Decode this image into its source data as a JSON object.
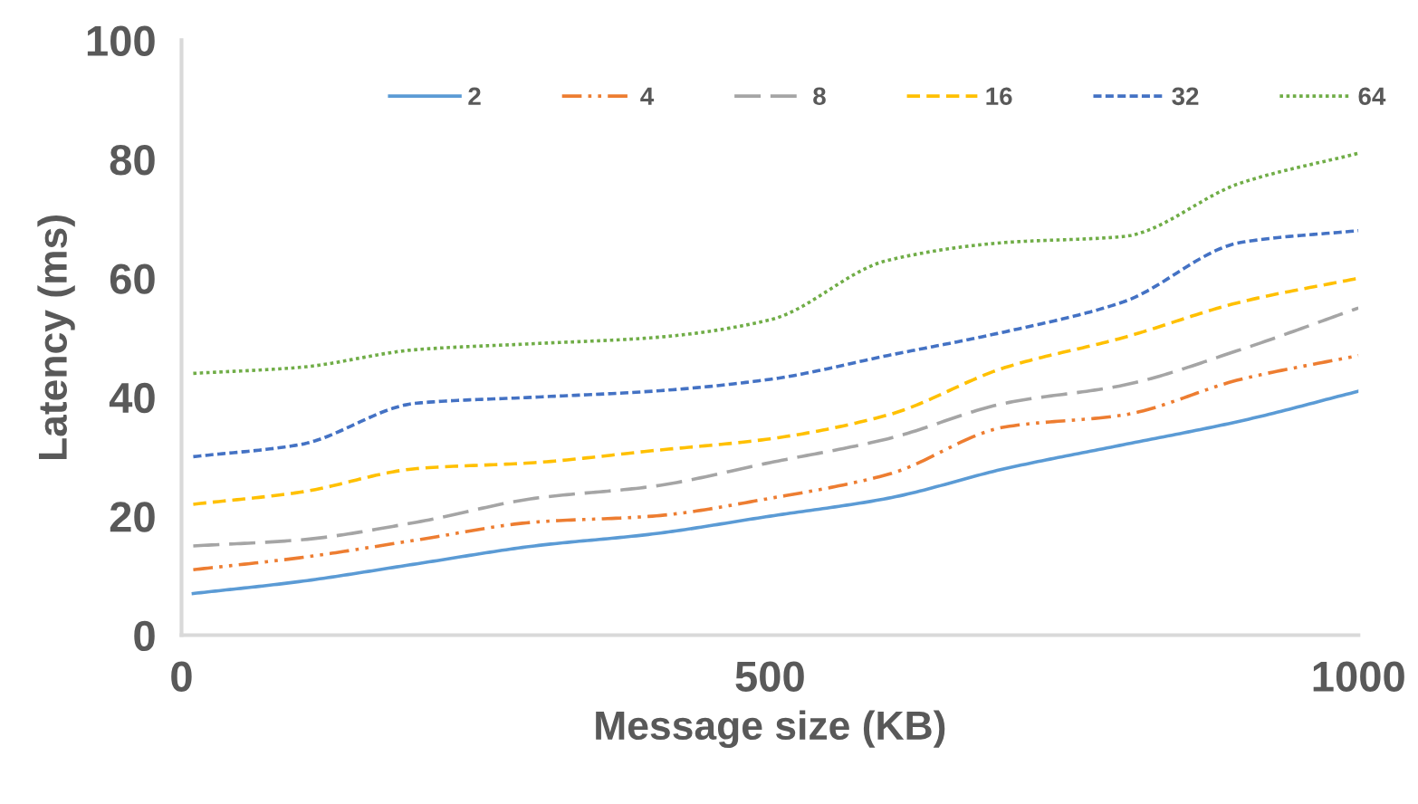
{
  "chart_data": {
    "type": "line",
    "xlabel": "Message size (KB)",
    "ylabel": "Latency (ms)",
    "x": [
      10,
      100,
      200,
      300,
      400,
      500,
      600,
      700,
      800,
      900,
      1000
    ],
    "xlim": [
      0,
      1000
    ],
    "xticks": [
      0,
      500,
      1000
    ],
    "ylim": [
      0,
      100
    ],
    "yticks": [
      0,
      20,
      40,
      60,
      80,
      100
    ],
    "grid": false,
    "legend": "top",
    "marker": "none",
    "series": [
      {
        "name": "2",
        "color": "#5b9bd5",
        "line_style": "solid",
        "values": [
          7,
          9,
          12,
          15,
          17,
          20,
          23,
          28,
          32,
          36,
          41
        ]
      },
      {
        "name": "4",
        "color": "#ed7d31",
        "line_style": "dashdotdot",
        "values": [
          11,
          13,
          16,
          19,
          20,
          23,
          27,
          35,
          37,
          43,
          47
        ]
      },
      {
        "name": "8",
        "color": "#a5a5a5",
        "line_style": "longdash",
        "values": [
          15,
          16,
          19,
          23,
          25,
          29,
          33,
          39,
          42,
          48,
          55
        ]
      },
      {
        "name": "16",
        "color": "#ffc000",
        "line_style": "dashed",
        "values": [
          22,
          24,
          28,
          29,
          31,
          33,
          37,
          45,
          50,
          56,
          60
        ]
      },
      {
        "name": "32",
        "color": "#4472c4",
        "line_style": "shortdash",
        "values": [
          30,
          32,
          39,
          40,
          41,
          43,
          47,
          51,
          56,
          66,
          68
        ]
      },
      {
        "name": "64",
        "color": "#70ad47",
        "line_style": "dotted",
        "values": [
          44,
          45,
          48,
          49,
          50,
          53,
          63,
          66,
          67,
          76,
          81
        ]
      }
    ]
  }
}
